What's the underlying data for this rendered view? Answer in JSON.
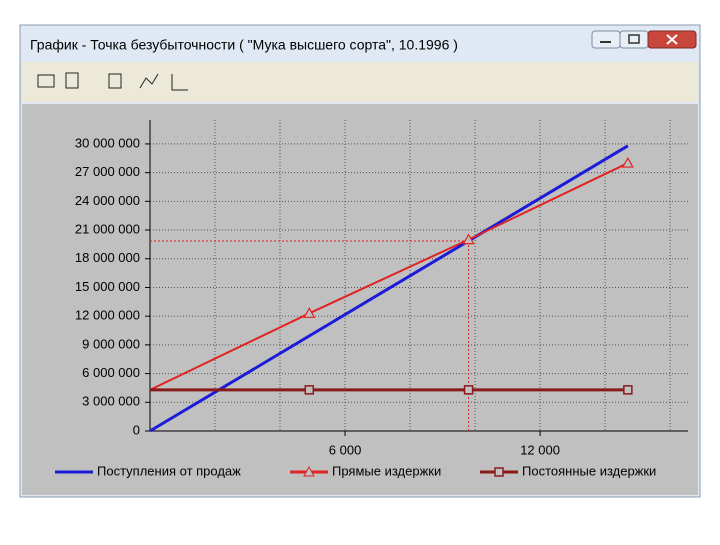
{
  "window": {
    "title": "График - Точка безубыточности ( \"Мука высшего сорта\", 10.1996 )"
  },
  "chart_data": {
    "type": "line",
    "xlim": [
      0,
      16550
    ],
    "ylim": [
      0,
      32500000
    ],
    "xticks": [
      {
        "value": 6000,
        "label": "6 000"
      },
      {
        "value": 12000,
        "label": "12 000"
      }
    ],
    "xgrid": [
      2000,
      4000,
      6000,
      8000,
      10000,
      12000,
      14000,
      16000
    ],
    "yticks": [
      0,
      {
        "value": 3000000,
        "label": "3 000 000"
      },
      {
        "value": 6000000,
        "label": "6 000 000"
      },
      {
        "value": 9000000,
        "label": "9 000 000"
      },
      {
        "value": 12000000,
        "label": "12 000 000"
      },
      {
        "value": 15000000,
        "label": "15 000 000"
      },
      {
        "value": 18000000,
        "label": "18 000 000"
      },
      {
        "value": 21000000,
        "label": "21 000 000"
      },
      {
        "value": 24000000,
        "label": "24 000 000"
      },
      {
        "value": 27000000,
        "label": "27 000 000"
      },
      {
        "value": 30000000,
        "label": "30 000 000"
      }
    ],
    "grid": true,
    "series": [
      {
        "name": "Поступления от продаж",
        "color": "#1c1cd8",
        "marker": "none",
        "x": [
          0,
          14700
        ],
        "values": [
          0,
          29800000
        ]
      },
      {
        "name": "Прямые издержки",
        "color": "#e02424",
        "marker": "triangle",
        "x": [
          0,
          4900,
          9800,
          14700
        ],
        "values": [
          4300000,
          12300000,
          20000000,
          28000000
        ]
      },
      {
        "name": "Постоянные издержки",
        "color": "#8b1a1a",
        "marker": "square",
        "x": [
          0,
          4900,
          9800,
          14700
        ],
        "values": [
          4300000,
          4300000,
          4300000,
          4300000
        ]
      }
    ],
    "breakeven": {
      "x": 9800,
      "y": 19850000
    }
  }
}
